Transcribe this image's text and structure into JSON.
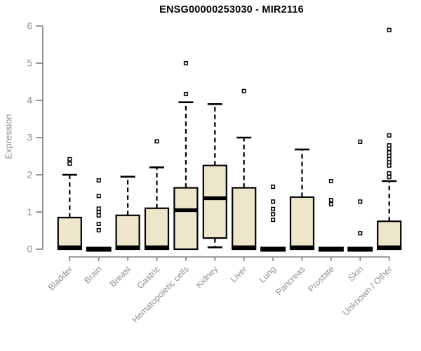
{
  "chart_data": {
    "type": "boxplot",
    "title": "ENSG00000253030 - MIR2116",
    "ylabel": "Expression",
    "xlabel": "",
    "ylim": [
      0,
      6
    ],
    "yticks": [
      0,
      1,
      2,
      3,
      4,
      5,
      6
    ],
    "grid": false,
    "legend": "none",
    "categories": [
      "Bladder",
      "Brain",
      "Breast",
      "Gastric",
      "Hematopoietic cells",
      "Kidney",
      "Liver",
      "Lung",
      "Pancreas",
      "Prostate",
      "Skin",
      "Unknown / Other"
    ],
    "boxes": [
      {
        "category": "Bladder",
        "low": 0,
        "q1": 0,
        "median": 0.05,
        "q3": 0.85,
        "high": 2.0,
        "outliers": [
          2.3,
          2.42
        ]
      },
      {
        "category": "Brain",
        "low": 0,
        "q1": 0,
        "median": 0,
        "q3": 0,
        "high": 0,
        "outliers": [
          0.51,
          0.68,
          0.91,
          1.0,
          1.09,
          1.43,
          1.85
        ]
      },
      {
        "category": "Breast",
        "low": 0,
        "q1": 0,
        "median": 0.05,
        "q3": 0.91,
        "high": 1.95,
        "outliers": []
      },
      {
        "category": "Gastric",
        "low": 0,
        "q1": 0,
        "median": 0.05,
        "q3": 1.1,
        "high": 2.2,
        "outliers": [
          2.9
        ]
      },
      {
        "category": "Hematopoietic cells",
        "low": 0,
        "q1": 0,
        "median": 1.05,
        "q3": 1.65,
        "high": 3.95,
        "outliers": [
          4.17,
          5.0
        ]
      },
      {
        "category": "Kidney",
        "low": 0.05,
        "q1": 0.3,
        "median": 1.37,
        "q3": 2.25,
        "high": 3.9,
        "outliers": []
      },
      {
        "category": "Liver",
        "low": 0,
        "q1": 0,
        "median": 0.05,
        "q3": 1.65,
        "high": 3.0,
        "outliers": [
          4.25
        ]
      },
      {
        "category": "Lung",
        "low": 0,
        "q1": 0,
        "median": 0,
        "q3": 0,
        "high": 0,
        "outliers": [
          0.79,
          0.94,
          1.08,
          1.28,
          1.68
        ]
      },
      {
        "category": "Pancreas",
        "low": 0,
        "q1": 0,
        "median": 0.05,
        "q3": 1.4,
        "high": 2.68,
        "outliers": []
      },
      {
        "category": "Prostate",
        "low": 0,
        "q1": 0,
        "median": 0,
        "q3": 0,
        "high": 0,
        "outliers": [
          1.21,
          1.32,
          1.83
        ]
      },
      {
        "category": "Skin",
        "low": 0,
        "q1": 0,
        "median": 0,
        "q3": 0,
        "high": 0,
        "outliers": [
          0.43,
          1.28,
          2.89
        ]
      },
      {
        "category": "Unknown / Other",
        "low": 0,
        "q1": 0,
        "median": 0.05,
        "q3": 0.75,
        "high": 1.83,
        "outliers": [
          1.94,
          2.04,
          2.25,
          2.34,
          2.42,
          2.51,
          2.6,
          2.7,
          2.79,
          3.06,
          5.89
        ]
      }
    ],
    "colors": {
      "box_fill": "#EDE6CB",
      "box_border": "#000000",
      "median": "#000000",
      "whisker": "#000000",
      "outlier_fill": "#ffffff",
      "axis": "#7f7f7f",
      "tick_label": "#8f8f8f",
      "title": "#000000",
      "background": "#ffffff"
    }
  }
}
